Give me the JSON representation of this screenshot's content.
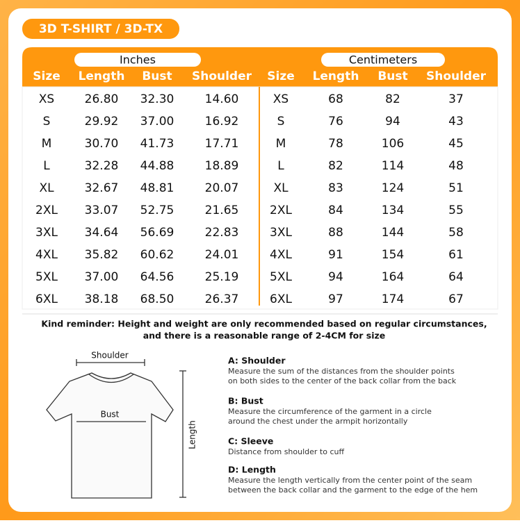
{
  "title": "3D T-SHIRT / 3D-TX",
  "table": {
    "inches": {
      "label": "Inches",
      "headers": [
        "Size",
        "Length",
        "Bust",
        "Shoulder"
      ],
      "rows": [
        [
          "XS",
          "26.80",
          "32.30",
          "14.60"
        ],
        [
          "S",
          "29.92",
          "37.00",
          "16.92"
        ],
        [
          "M",
          "30.70",
          "41.73",
          "17.71"
        ],
        [
          "L",
          "32.28",
          "44.88",
          "18.89"
        ],
        [
          "XL",
          "32.67",
          "48.81",
          "20.07"
        ],
        [
          "2XL",
          "33.07",
          "52.75",
          "21.65"
        ],
        [
          "3XL",
          "34.64",
          "56.69",
          "22.83"
        ],
        [
          "4XL",
          "35.82",
          "60.62",
          "24.01"
        ],
        [
          "5XL",
          "37.00",
          "64.56",
          "25.19"
        ],
        [
          "6XL",
          "38.18",
          "68.50",
          "26.37"
        ]
      ]
    },
    "centimeters": {
      "label": "Centimeters",
      "headers": [
        "Size",
        "Length",
        "Bust",
        "Shoulder"
      ],
      "rows": [
        [
          "XS",
          "68",
          "82",
          "37"
        ],
        [
          "S",
          "76",
          "94",
          "43"
        ],
        [
          "M",
          "78",
          "106",
          "45"
        ],
        [
          "L",
          "82",
          "114",
          "48"
        ],
        [
          "XL",
          "83",
          "124",
          "51"
        ],
        [
          "2XL",
          "84",
          "134",
          "55"
        ],
        [
          "3XL",
          "88",
          "144",
          "58"
        ],
        [
          "4XL",
          "91",
          "154",
          "61"
        ],
        [
          "5XL",
          "94",
          "164",
          "64"
        ],
        [
          "6XL",
          "97",
          "174",
          "67"
        ]
      ]
    }
  },
  "reminder": [
    "Kind reminder: Height and weight are only recommended based on regular circumstances,",
    "and there is a reasonable range of 2-4CM for size"
  ],
  "diagram": {
    "shoulder": "Shoulder",
    "bust": "Bust",
    "length": "Length"
  },
  "notes": [
    {
      "title": "A: Shoulder",
      "lines": [
        "Measure the sum of the distances from the shoulder points",
        "on both sides to the center of the back collar from the back"
      ]
    },
    {
      "title": "B: Bust",
      "lines": [
        "Measure the circumference of the garment in a circle",
        "around the chest under the armpit horizontally"
      ]
    },
    {
      "title": "C: Sleeve",
      "lines": [
        "Distance from shoulder to cuff"
      ]
    },
    {
      "title": "D: Length",
      "lines": [
        "Measure the length vertically from the center point of the seam",
        "between the back collar and the garment to the edge of the hem"
      ]
    }
  ]
}
